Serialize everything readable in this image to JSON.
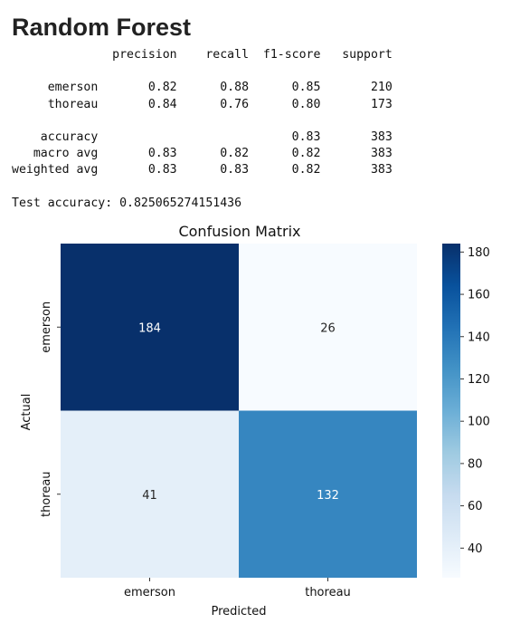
{
  "page": {
    "title": "Random Forest",
    "report_lines": [
      "              precision    recall  f1-score   support",
      "",
      "     emerson       0.82      0.88      0.85       210",
      "     thoreau       0.84      0.76      0.80       173",
      "",
      "    accuracy                           0.83       383",
      "   macro avg       0.83      0.82      0.82       383",
      "weighted avg       0.83      0.83      0.82       383",
      "",
      "Test accuracy: 0.825065274151436"
    ]
  },
  "chart_data": {
    "type": "heatmap",
    "title": "Confusion Matrix",
    "xlabel": "Predicted",
    "ylabel": "Actual",
    "x_categories": [
      "emerson",
      "thoreau"
    ],
    "y_categories": [
      "emerson",
      "thoreau"
    ],
    "values": [
      [
        184,
        26
      ],
      [
        41,
        132
      ]
    ],
    "colormap": "Blues",
    "colors": {
      "low": "#f7fbff",
      "high": "#08306b"
    },
    "vmin": 26,
    "vmax": 184,
    "colorbar_ticks": [
      40,
      60,
      80,
      100,
      120,
      140,
      160,
      180
    ]
  }
}
